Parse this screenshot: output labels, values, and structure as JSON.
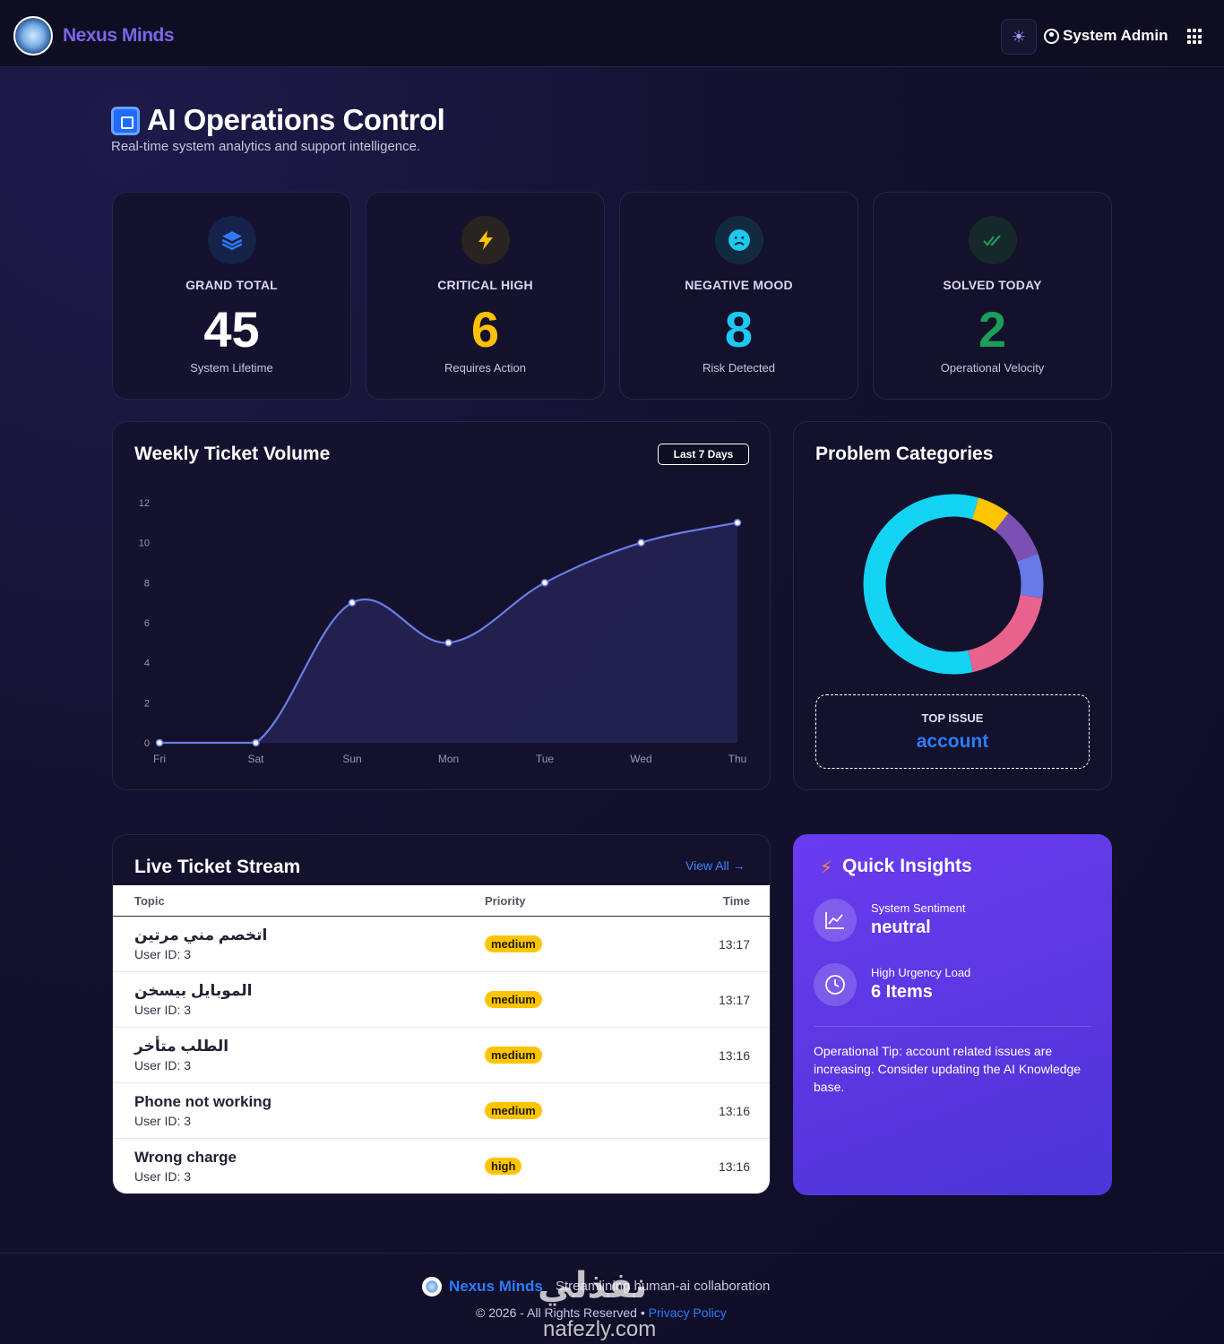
{
  "header": {
    "brand": "Nexus Minds",
    "user_label": "System Admin",
    "icons": [
      "sun-icon",
      "user-circle-icon",
      "apps-grid-icon"
    ]
  },
  "page": {
    "title": "AI Operations Control",
    "subtitle": "Real-time system analytics and support intelligence."
  },
  "stats": [
    {
      "label": "GRAND TOTAL",
      "value": "45",
      "caption": "System Lifetime",
      "color": "#ffffff",
      "icon": "layers-icon"
    },
    {
      "label": "CRITICAL HIGH",
      "value": "6",
      "caption": "Requires Action",
      "color": "#ffc107",
      "icon": "lightning-icon"
    },
    {
      "label": "NEGATIVE MOOD",
      "value": "8",
      "caption": "Risk Detected",
      "color": "#1ec8f0",
      "icon": "sad-face-icon"
    },
    {
      "label": "SOLVED TODAY",
      "value": "2",
      "caption": "Operational Velocity",
      "color": "#1a9e5a",
      "icon": "double-check-icon"
    }
  ],
  "weekly": {
    "title": "Weekly Ticket Volume",
    "range_label": "Last 7 Days"
  },
  "categories_panel": {
    "title": "Problem Categories",
    "top_issue_label": "TOP ISSUE",
    "top_issue_value": "account"
  },
  "chart_data": [
    {
      "type": "area",
      "title": "Weekly Ticket Volume",
      "categories": [
        "Fri",
        "Sat",
        "Sun",
        "Mon",
        "Tue",
        "Wed",
        "Thu"
      ],
      "values": [
        0,
        0,
        7,
        5,
        8,
        10,
        11
      ],
      "yticks": [
        0,
        2,
        4,
        6,
        8,
        10,
        12
      ],
      "ylim": [
        0,
        12
      ],
      "color": "#6b7ce8",
      "grid": false
    },
    {
      "type": "pie",
      "title": "Problem Categories",
      "donut": true,
      "slices": [
        {
          "value": 0.58,
          "color": "#14d4f4"
        },
        {
          "value": 0.06,
          "color": "#ffc400"
        },
        {
          "value": 0.09,
          "color": "#7c4fb3"
        },
        {
          "value": 0.08,
          "color": "#6979e6"
        },
        {
          "value": 0.19,
          "color": "#e8628e"
        }
      ]
    }
  ],
  "stream": {
    "title": "Live Ticket Stream",
    "view_all": "View All →",
    "columns": [
      "Topic",
      "Priority",
      "Time"
    ],
    "rows": [
      {
        "topic": "اتخصم مني مرتين",
        "user": "User ID: 3",
        "priority": "medium",
        "time": "13:17"
      },
      {
        "topic": "الموبايل بيسخن",
        "user": "User ID: 3",
        "priority": "medium",
        "time": "13:17"
      },
      {
        "topic": "الطلب متأخر",
        "user": "User ID: 3",
        "priority": "medium",
        "time": "13:16"
      },
      {
        "topic": "Phone not working",
        "user": "User ID: 3",
        "priority": "medium",
        "time": "13:16"
      },
      {
        "topic": "Wrong charge",
        "user": "User ID: 3",
        "priority": "high",
        "time": "13:16"
      }
    ]
  },
  "insights": {
    "title": "Quick Insights",
    "sentiment_label": "System Sentiment",
    "sentiment_value": "neutral",
    "urgency_label": "High Urgency Load",
    "urgency_value": "6 Items",
    "tip": "Operational Tip: account related issues are increasing. Consider updating the AI Knowledge base."
  },
  "footer": {
    "brand": "Nexus Minds",
    "tagline": "Streamlining human-ai collaboration",
    "copyright": "© 2026 - All Rights Reserved • ",
    "privacy": "Privacy Policy"
  },
  "watermark": {
    "arabic": "نفذلي",
    "latin": "nafezly.com"
  }
}
